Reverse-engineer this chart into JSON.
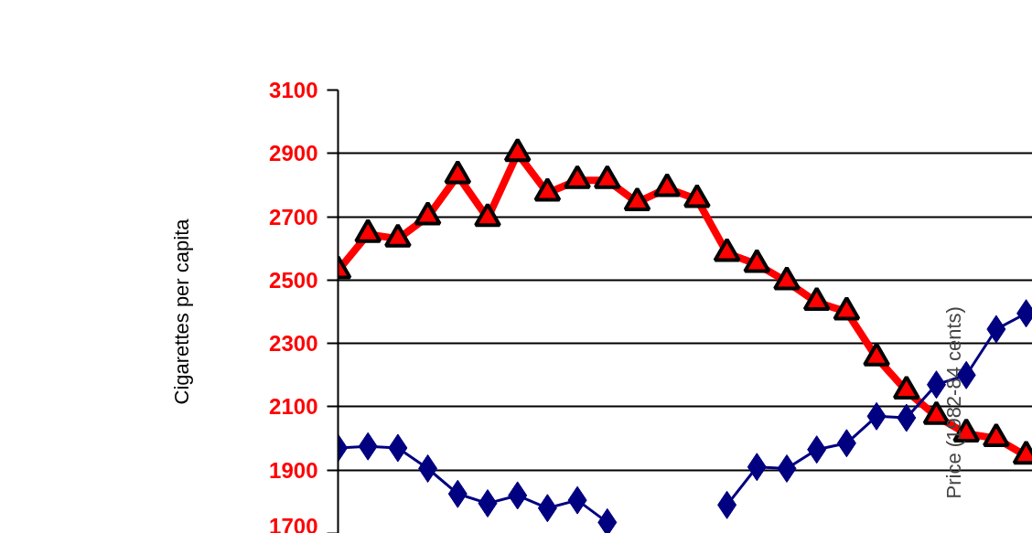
{
  "chart_data": {
    "type": "line",
    "ylabel": "Cigarettes per capita",
    "y2label": "Price (1982-84 cents)",
    "categories": [
      null,
      null,
      null,
      null,
      null,
      null,
      null,
      null,
      null,
      null,
      null,
      null,
      null,
      null,
      null,
      null,
      null,
      null,
      null,
      null,
      null,
      null,
      null,
      null
    ],
    "series": [
      {
        "color": "#ff0000",
        "marker": "triangle",
        "values": [
          2530,
          2645,
          2630,
          2700,
          2830,
          2695,
          2900,
          2775,
          2815,
          2815,
          2745,
          2790,
          2755,
          2585,
          2550,
          2495,
          2430,
          2400,
          2255,
          2150,
          2070,
          2015,
          2000,
          1945
        ]
      },
      {
        "color": "#000080",
        "marker": "diamond",
        "values": [
          1970,
          1975,
          1970,
          1905,
          1825,
          1795,
          1820,
          1780,
          1805,
          1735,
          null,
          null,
          null,
          1790,
          1910,
          1905,
          1965,
          1985,
          2070,
          2065,
          2170,
          2200,
          2345,
          2395
        ]
      }
    ],
    "ylim": [
      1700,
      3100
    ],
    "yticks": [
      1700,
      1900,
      2100,
      2300,
      2500,
      2700,
      2900,
      3100
    ],
    "grid": "y"
  }
}
